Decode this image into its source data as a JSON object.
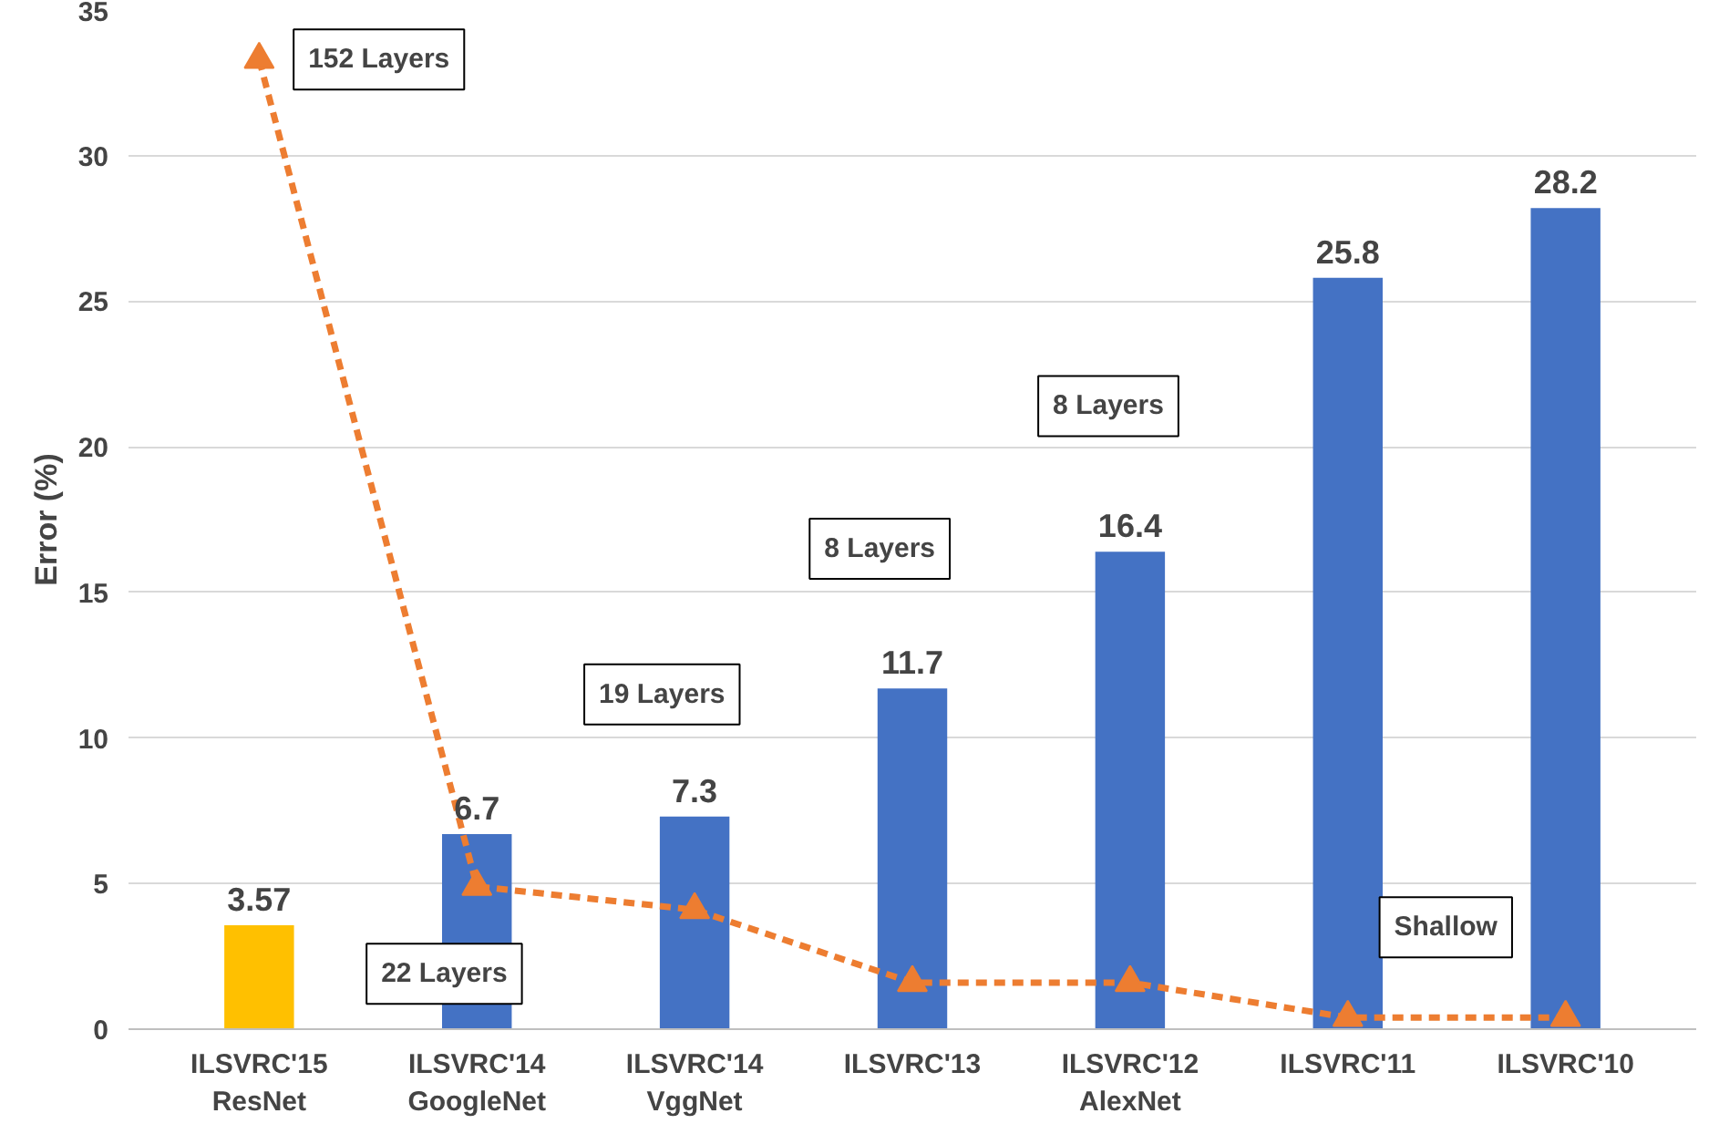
{
  "chart_data": {
    "type": "bar",
    "ylabel": "Error (%)",
    "categories": [
      "ILSVRC'15\nResNet",
      "ILSVRC'14\nGoogleNet",
      "ILSVRC'14\nVggNet",
      "ILSVRC'13",
      "ILSVRC'12\nAlexNet",
      "ILSVRC'11",
      "ILSVRC'10"
    ],
    "series": [
      {
        "colors": [
          "#ffc000",
          "#4472c4",
          "#4472c4",
          "#4472c4",
          "#4472c4",
          "#4472c4",
          "#4472c4"
        ],
        "values": [
          3.57,
          6.7,
          7.3,
          11.7,
          16.4,
          25.8,
          28.2
        ],
        "value_labels": [
          "3.57",
          "6.7",
          "7.3",
          "11.7",
          "16.4",
          "25.8",
          "28.2"
        ]
      },
      {
        "type": "line",
        "color": "#ed7d31",
        "values": [
          33.3,
          4.9,
          4.1,
          1.6,
          1.6,
          0.4,
          0.4
        ],
        "marker": "triangle",
        "line_style": "dashed"
      }
    ],
    "annotations": [
      "152 Layers",
      "22 Layers",
      "19 Layers",
      "8 Layers",
      "8 Layers",
      "Shallow"
    ],
    "ylim": [
      0,
      35
    ],
    "yticks": [
      0,
      5,
      10,
      15,
      20,
      25,
      30,
      35
    ],
    "grid": "y"
  }
}
